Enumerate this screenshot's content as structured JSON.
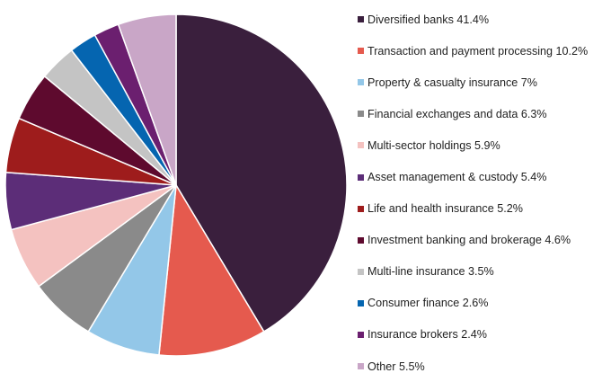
{
  "chart_data": {
    "type": "pie",
    "categories": [
      "Diversified banks",
      "Transaction and payment processing",
      "Property & casualty insurance",
      "Financial exchanges and data",
      "Multi-sector holdings",
      "Asset management & custody",
      "Life and health insurance",
      "Investment banking and brokerage",
      "Multi-line insurance",
      "Consumer finance",
      "Insurance brokers",
      "Other"
    ],
    "values": [
      41.4,
      10.2,
      7,
      6.3,
      5.9,
      5.4,
      5.2,
      4.6,
      3.5,
      2.6,
      2.4,
      5.5
    ],
    "colors": [
      "#3a1f3d",
      "#e55a4e",
      "#93c7e8",
      "#8a8a8a",
      "#f4c2c0",
      "#5c2d78",
      "#9e1c1c",
      "#5e0a2e",
      "#c4c4c4",
      "#0565b0",
      "#6b1f6f",
      "#c9a6c7"
    ],
    "legend_labels": [
      "Diversified banks 41.4%",
      "Transaction and payment processing 10.2%",
      "Property & casualty insurance 7%",
      "Financial exchanges and data 6.3%",
      "Multi-sector holdings 5.9%",
      "Asset management & custody 5.4%",
      "Life and health insurance 5.2%",
      "Investment banking and brokerage 4.6%",
      "Multi-line insurance 3.5%",
      "Consumer finance 2.6%",
      "Insurance brokers 2.4%",
      "Other 5.5%"
    ],
    "legend_position": "right",
    "start_angle": "12 o'clock",
    "direction": "clockwise"
  }
}
